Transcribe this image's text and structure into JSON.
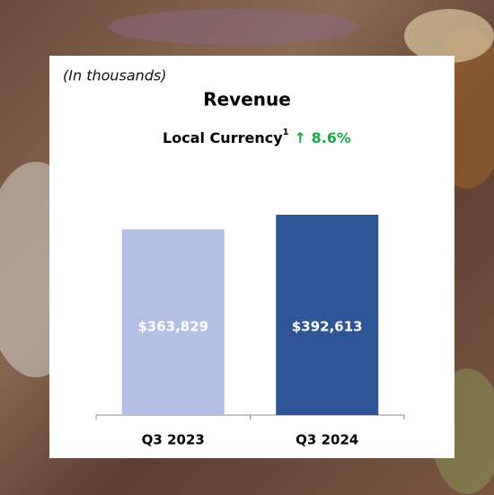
{
  "chart_data": {
    "type": "bar",
    "note": "(In thousands)",
    "title": "Revenue",
    "subtitle": "Local Currency",
    "subtitle_footnote": "1",
    "change": "↑ 8.6%",
    "categories": [
      "Q3 2023",
      "Q3 2024"
    ],
    "values": [
      363829,
      392613
    ],
    "value_labels": [
      "$363,829",
      "$392,613"
    ],
    "colors": [
      "#b4c0e3",
      "#2f5597"
    ]
  }
}
